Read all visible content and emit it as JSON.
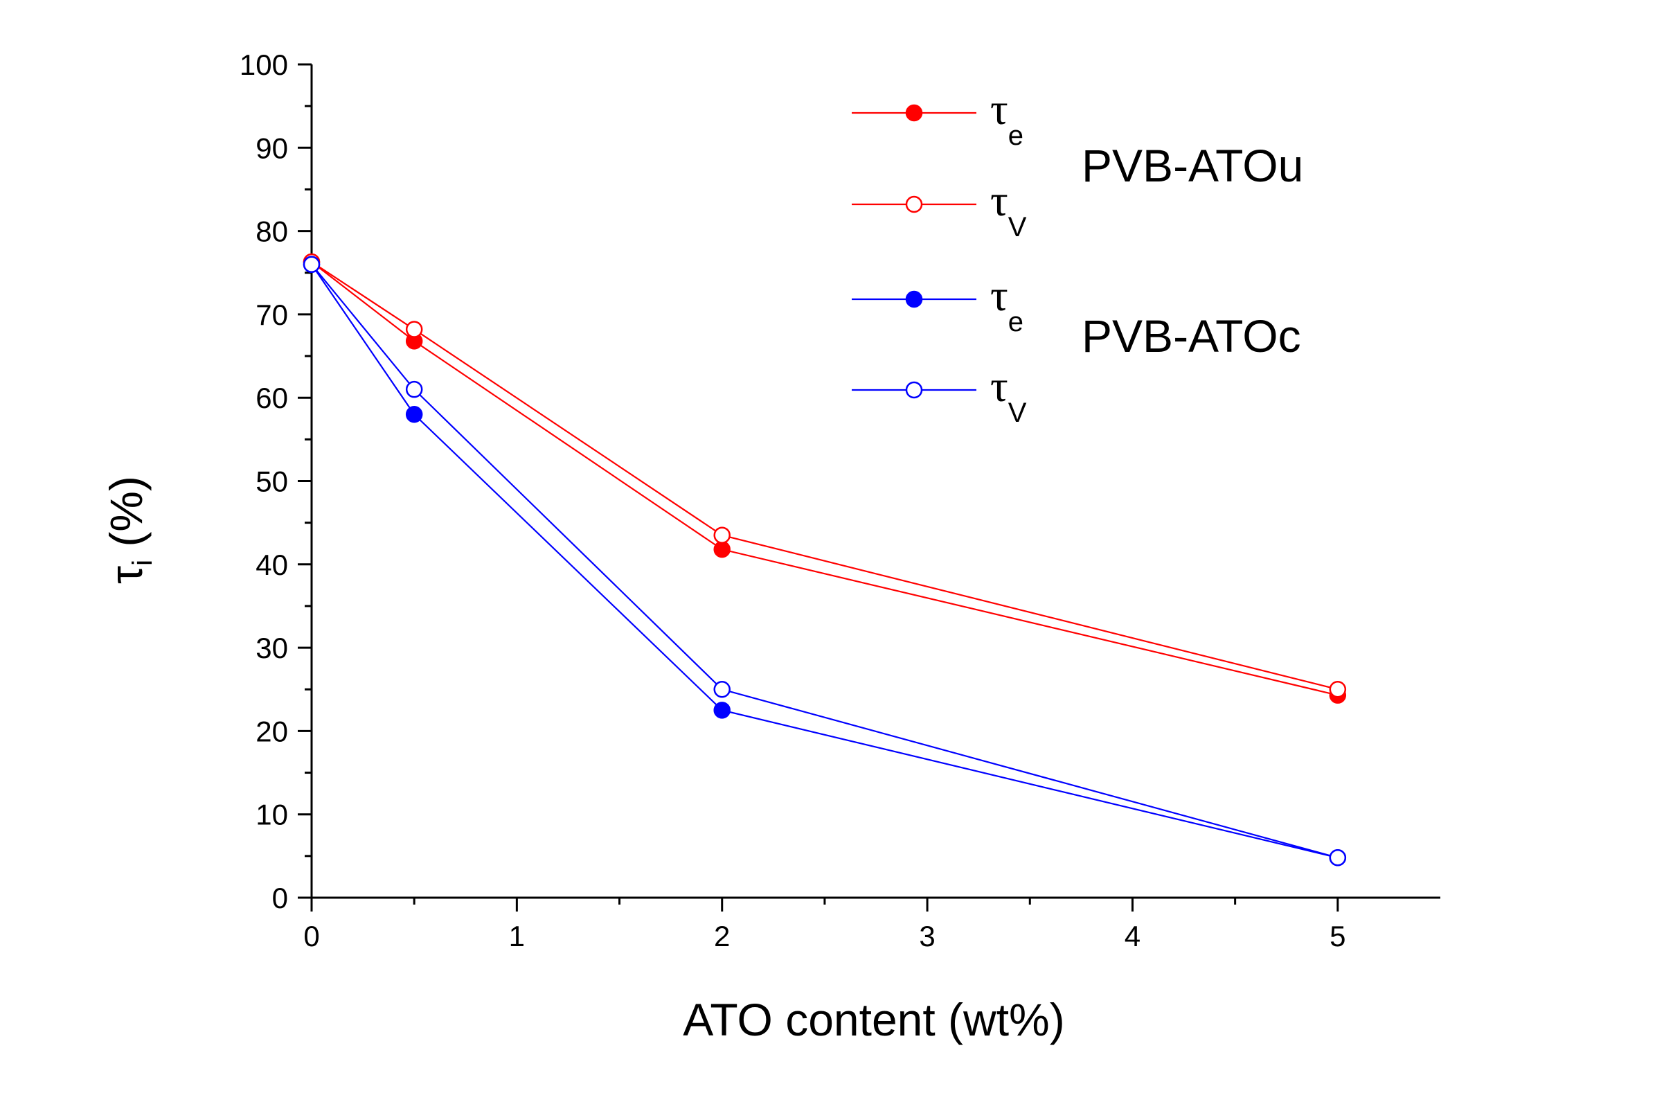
{
  "chart_data": {
    "type": "line",
    "xlabel": "ATO content (wt%)",
    "ylabel": {
      "symbol": "τ",
      "subscript": "i",
      "unit": "(%)"
    },
    "xlim": [
      0,
      5.5
    ],
    "ylim": [
      0,
      100
    ],
    "x_ticks": [
      0,
      1,
      2,
      3,
      4,
      5
    ],
    "y_ticks": [
      0,
      10,
      20,
      30,
      40,
      50,
      60,
      70,
      80,
      90,
      100
    ],
    "grid": false,
    "legend_position": "top-right",
    "groups": [
      {
        "label": "PVB-ATOu",
        "series_indices": [
          0,
          1
        ]
      },
      {
        "label": "PVB-ATOc",
        "series_indices": [
          2,
          3
        ]
      }
    ],
    "series": [
      {
        "symbol": "τ",
        "subscript": "e",
        "color": "#ff0000",
        "marker": "filled-circle",
        "x": [
          0,
          0.5,
          2,
          5
        ],
        "y": [
          76.3,
          66.8,
          41.8,
          24.3
        ]
      },
      {
        "symbol": "τ",
        "subscript": "V",
        "color": "#ff0000",
        "marker": "open-circle",
        "x": [
          0,
          0.5,
          2,
          5
        ],
        "y": [
          76.3,
          68.2,
          43.5,
          25.0
        ]
      },
      {
        "symbol": "τ",
        "subscript": "e",
        "color": "#0000ff",
        "marker": "filled-circle",
        "x": [
          0,
          0.5,
          2,
          5
        ],
        "y": [
          76.0,
          58.0,
          22.5,
          4.8
        ]
      },
      {
        "symbol": "τ",
        "subscript": "V",
        "color": "#0000ff",
        "marker": "open-circle",
        "x": [
          0,
          0.5,
          2,
          5
        ],
        "y": [
          76.0,
          61.0,
          25.0,
          4.8
        ]
      }
    ]
  }
}
